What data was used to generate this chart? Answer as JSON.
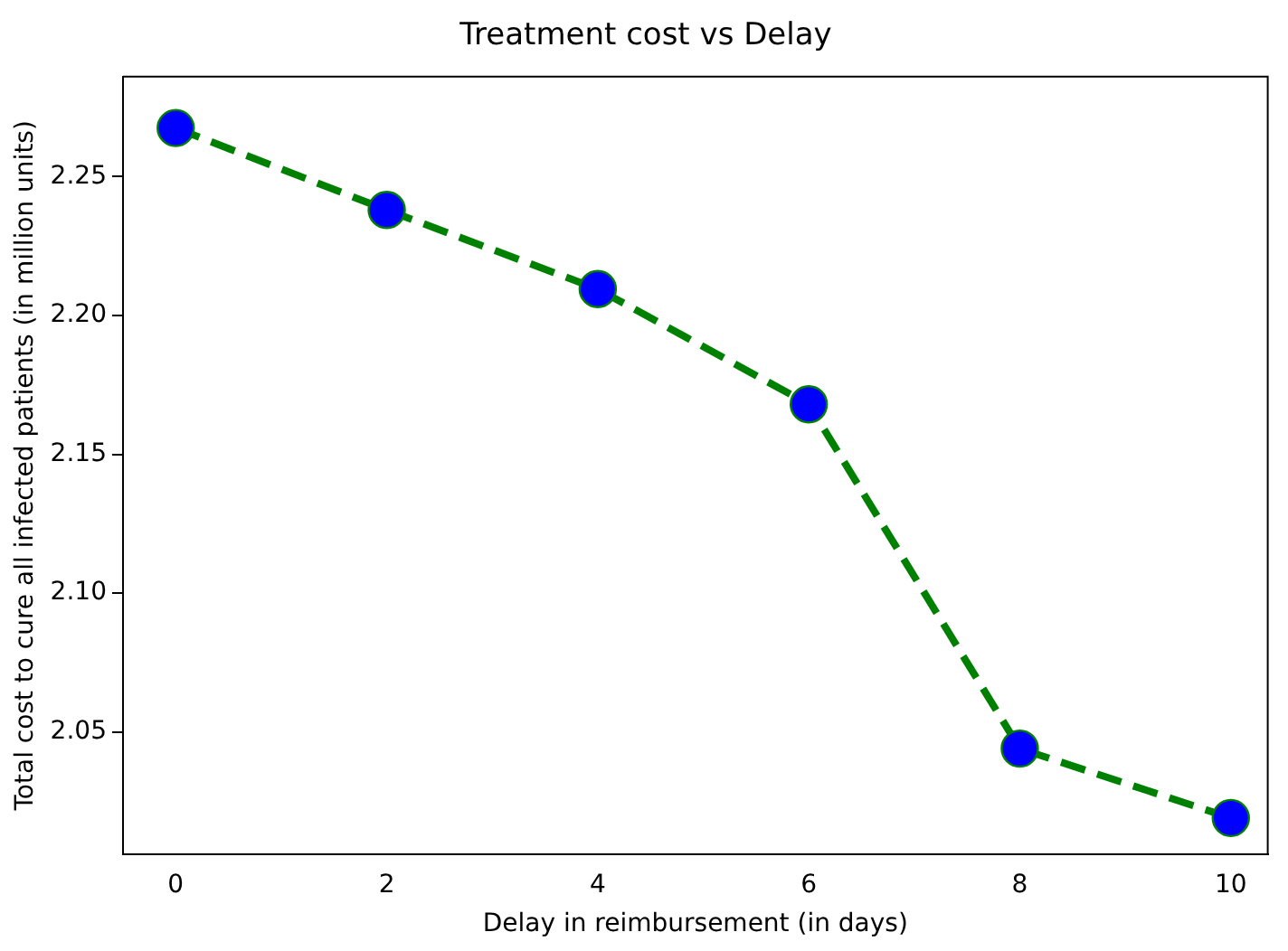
{
  "chart_data": {
    "type": "line",
    "title": "Treatment cost vs Delay",
    "xlabel": "Delay in reimbursement (in days)",
    "ylabel": "Total cost to cure all infected patients (in million units)",
    "x": [
      0,
      2,
      4,
      6,
      8,
      10
    ],
    "series": [
      {
        "color": "#008000",
        "colors": [
          "#0000ff",
          "#0000ff",
          "#0000ff",
          "#0000ff",
          "#0000ff",
          "#0000ff"
        ],
        "values": [
          2.2675,
          2.238,
          2.2095,
          2.168,
          2.044,
          2.019
        ]
      }
    ],
    "xlim": [
      -0.5,
      10.35
    ],
    "xticks": [
      0,
      2,
      4,
      6,
      8,
      10
    ],
    "ylim": [
      2.006,
      2.286
    ],
    "yticks": [
      2.05,
      {
        "value": 2.1,
        "label": "2.10"
      },
      2.15,
      {
        "value": 2.2,
        "label": "2.20"
      },
      2.25
    ],
    "grid": false,
    "legend": false,
    "marker": "circle",
    "line_style": "dashed"
  }
}
